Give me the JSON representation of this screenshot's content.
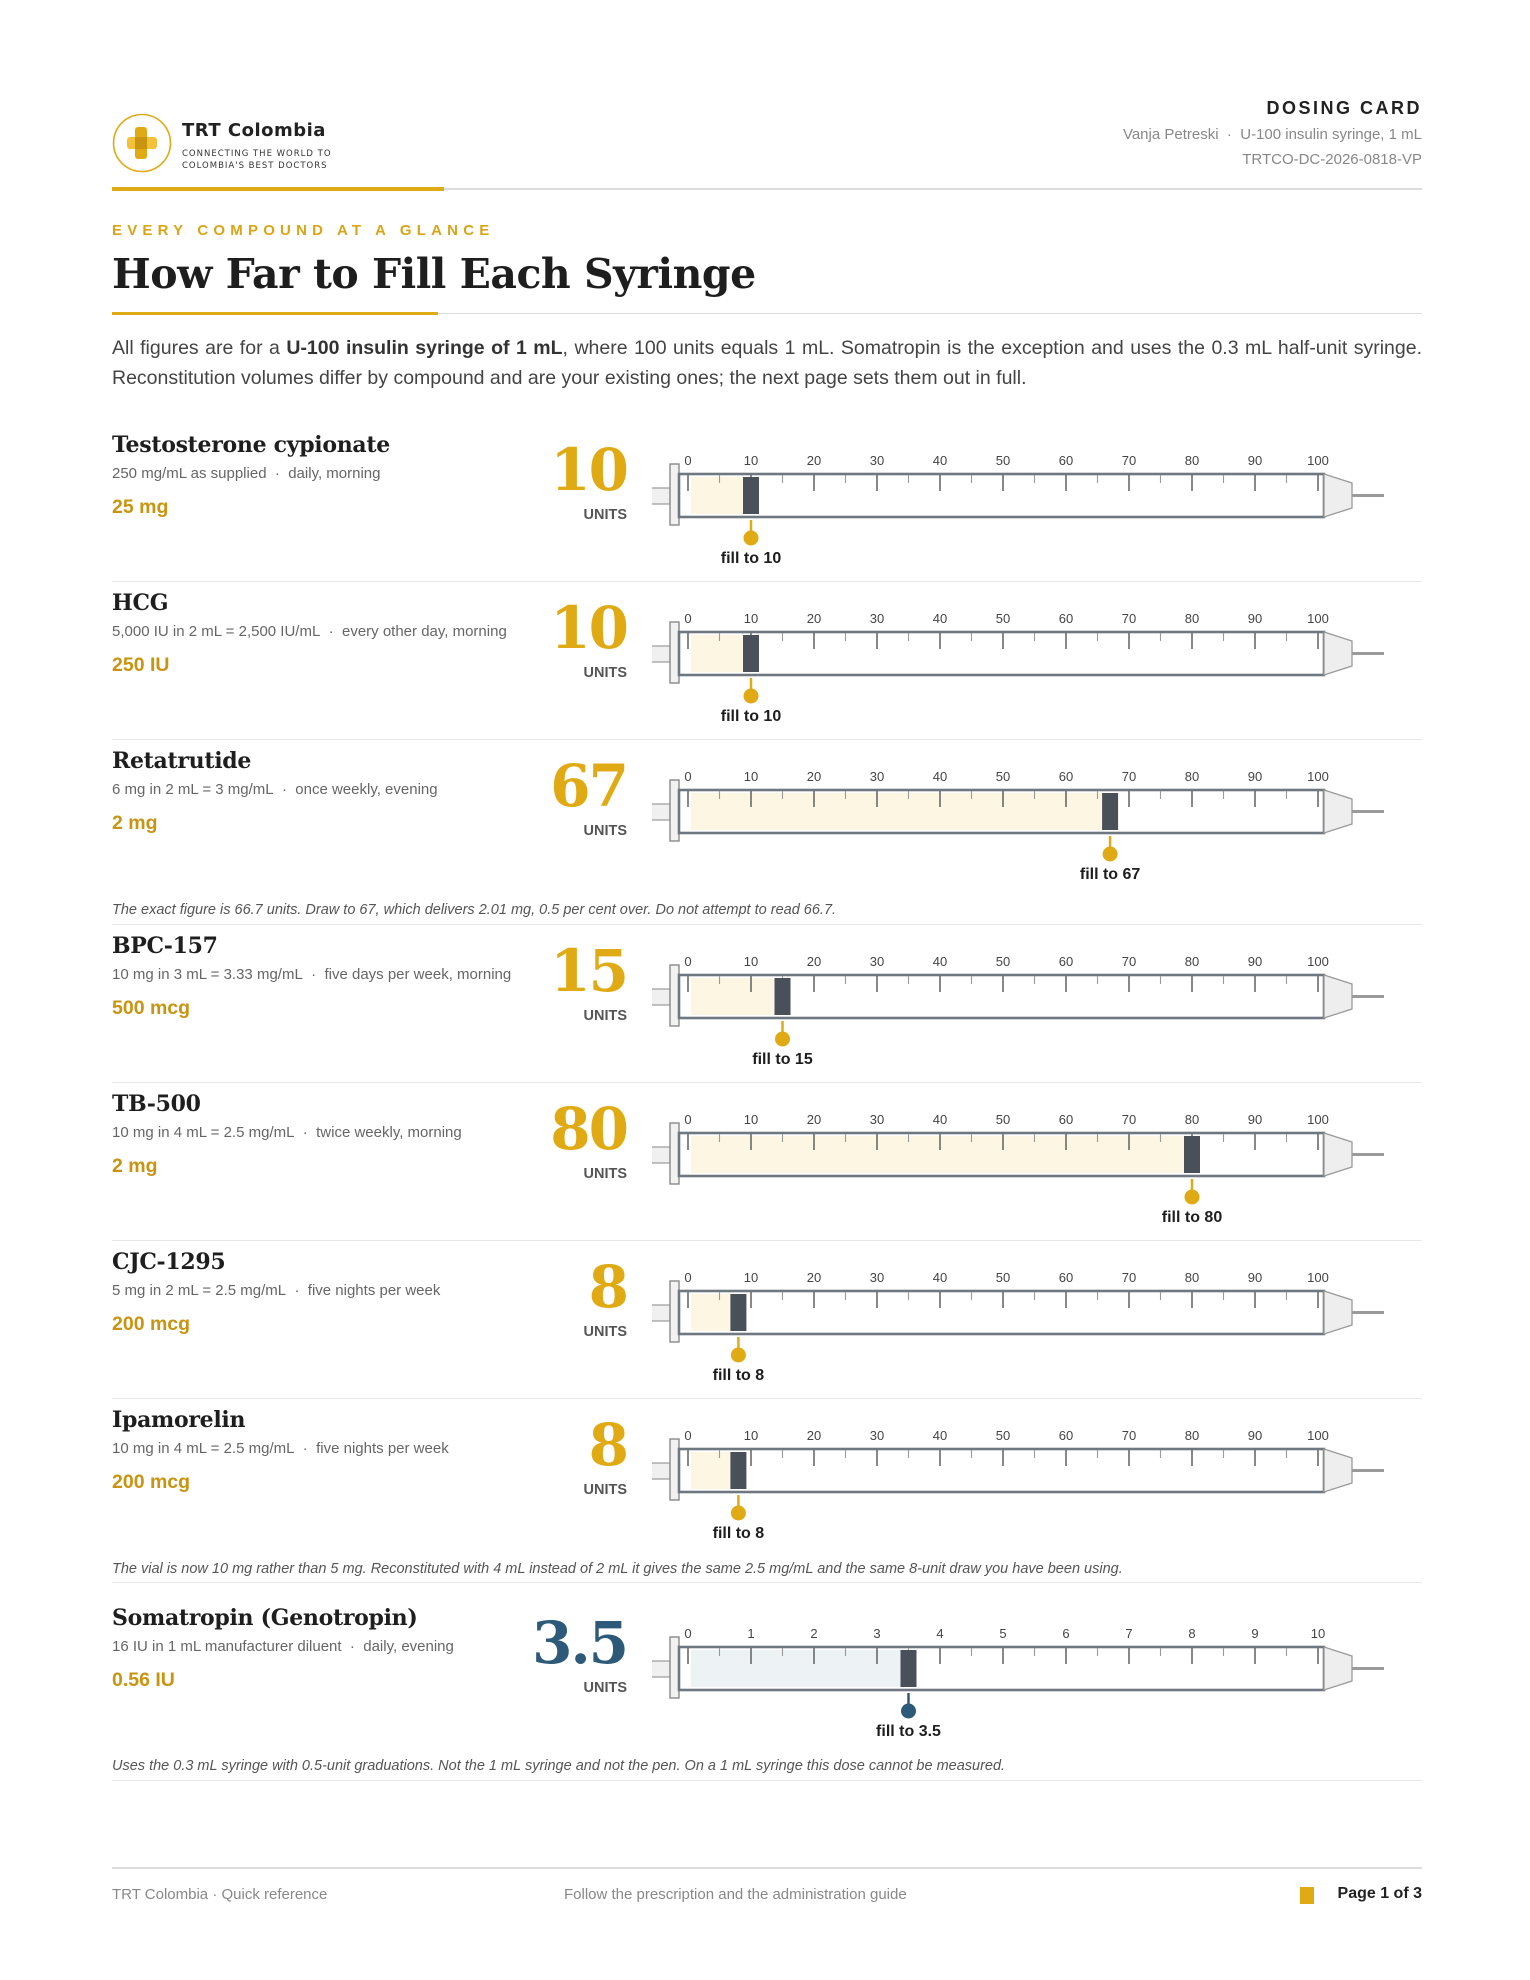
{
  "header": {
    "brand_name": "TRT Colombia",
    "brand_tagline": "CONNECTING THE WORLD TO COLOMBIA'S BEST DOCTORS",
    "doc_label": "DOSING CARD",
    "patient": "Vanja Petreski",
    "syringe": "U-100 insulin syringe, 1 mL",
    "doc_code": "TRTCO-DC-2026-0818-VP"
  },
  "eyebrow": "EVERY COMPOUND AT A GLANCE",
  "title": "How Far to Fill Each Syringe",
  "intro": {
    "p1": "All figures are for a ",
    "b1": "U-100 insulin syringe of 1 mL",
    "p2": ", where 100 units equals 1 mL. Somatropin is the exception and uses the 0.3 mL half-unit syringe. Reconstitution volumes differ by compound and are your existing ones; the next page sets them out in full."
  },
  "units_label": "UNITS",
  "fill_prefix": "fill to",
  "compounds": [
    {
      "name": "Testosterone cypionate",
      "concentration": "250 mg/mL as supplied",
      "schedule": "daily, morning",
      "dose": "25 mg",
      "units": "10",
      "fill_units": 10,
      "scale_max": 100,
      "scale_step": 10,
      "color": "#e0aa14",
      "fill_tint": "#fdf6e2",
      "note": ""
    },
    {
      "name": "HCG",
      "concentration": "5,000 IU in 2 mL = 2,500 IU/mL",
      "schedule": "every other day, morning",
      "dose": "250 IU",
      "units": "10",
      "fill_units": 10,
      "scale_max": 100,
      "scale_step": 10,
      "color": "#e0aa14",
      "fill_tint": "#fdf6e2",
      "note": ""
    },
    {
      "name": "Retatrutide",
      "concentration": "6 mg in 2 mL = 3 mg/mL",
      "schedule": "once weekly, evening",
      "dose": "2 mg",
      "units": "67",
      "fill_units": 67,
      "scale_max": 100,
      "scale_step": 10,
      "color": "#e0aa14",
      "fill_tint": "#fdf6e2",
      "note": "The exact figure is 66.7 units. Draw to 67, which delivers 2.01 mg, 0.5 per cent over. Do not attempt to read 66.7."
    },
    {
      "name": "BPC-157",
      "concentration": "10 mg in 3 mL = 3.33 mg/mL",
      "schedule": "five days per week, morning",
      "dose": "500 mcg",
      "units": "15",
      "fill_units": 15,
      "scale_max": 100,
      "scale_step": 10,
      "color": "#e0aa14",
      "fill_tint": "#fdf6e2",
      "note": ""
    },
    {
      "name": "TB-500",
      "concentration": "10 mg in 4 mL = 2.5 mg/mL",
      "schedule": "twice weekly, morning",
      "dose": "2 mg",
      "units": "80",
      "fill_units": 80,
      "scale_max": 100,
      "scale_step": 10,
      "color": "#e0aa14",
      "fill_tint": "#fdf6e2",
      "note": ""
    },
    {
      "name": "CJC-1295",
      "concentration": "5 mg in 2 mL = 2.5 mg/mL",
      "schedule": "five nights per week",
      "dose": "200 mcg",
      "units": "8",
      "fill_units": 8,
      "scale_max": 100,
      "scale_step": 10,
      "color": "#e0aa14",
      "fill_tint": "#fdf6e2",
      "note": ""
    },
    {
      "name": "Ipamorelin",
      "concentration": "10 mg in 4 mL = 2.5 mg/mL",
      "schedule": "five nights per week",
      "dose": "200 mcg",
      "units": "8",
      "fill_units": 8,
      "scale_max": 100,
      "scale_step": 10,
      "color": "#e0aa14",
      "fill_tint": "#fdf6e2",
      "note": "The vial is now 10 mg rather than 5 mg. Reconstituted with 4 mL instead of 2 mL it gives the same 2.5 mg/mL and the same 8-unit draw you have been using."
    },
    {
      "name": "Somatropin (Genotropin)",
      "concentration": "16 IU in 1 mL manufacturer diluent",
      "schedule": "daily, evening",
      "dose": "0.56 IU",
      "units": "3.5",
      "fill_units": 3.5,
      "scale_max": 10,
      "scale_step": 1,
      "color": "#2d5a78",
      "fill_tint": "#edf2f5",
      "note": "Uses the 0.3 mL syringe with 0.5-unit graduations. Not the 1 mL syringe and not the pen. On a 1 mL syringe this dose cannot be measured."
    }
  ],
  "footer": {
    "left": "TRT Colombia  ·  Quick reference",
    "middle": "Follow the prescription and the administration guide",
    "page": "Page 1 of 3"
  }
}
